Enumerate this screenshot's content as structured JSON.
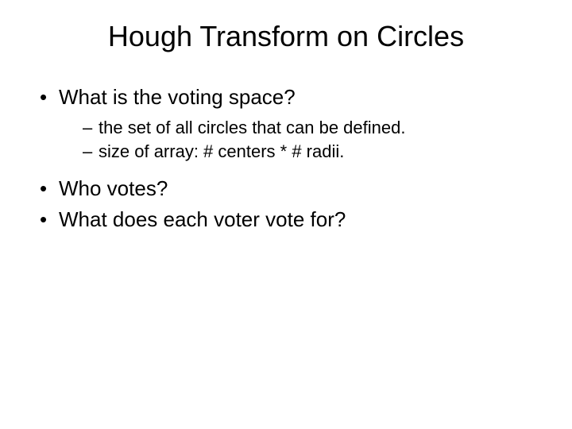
{
  "slide": {
    "title": "Hough Transform on Circles",
    "title_fontsize": 36,
    "body_fontsize": 26,
    "sub_fontsize": 22,
    "background_color": "#ffffff",
    "text_color": "#000000",
    "font_family": "Arial",
    "bullets": [
      {
        "text": "What is the voting space?",
        "subs": [
          "the set of all circles that can be defined.",
          "size of array: # centers * # radii."
        ]
      },
      {
        "text": "Who votes?",
        "subs": []
      },
      {
        "text": "What does each voter vote for?",
        "subs": []
      }
    ]
  }
}
